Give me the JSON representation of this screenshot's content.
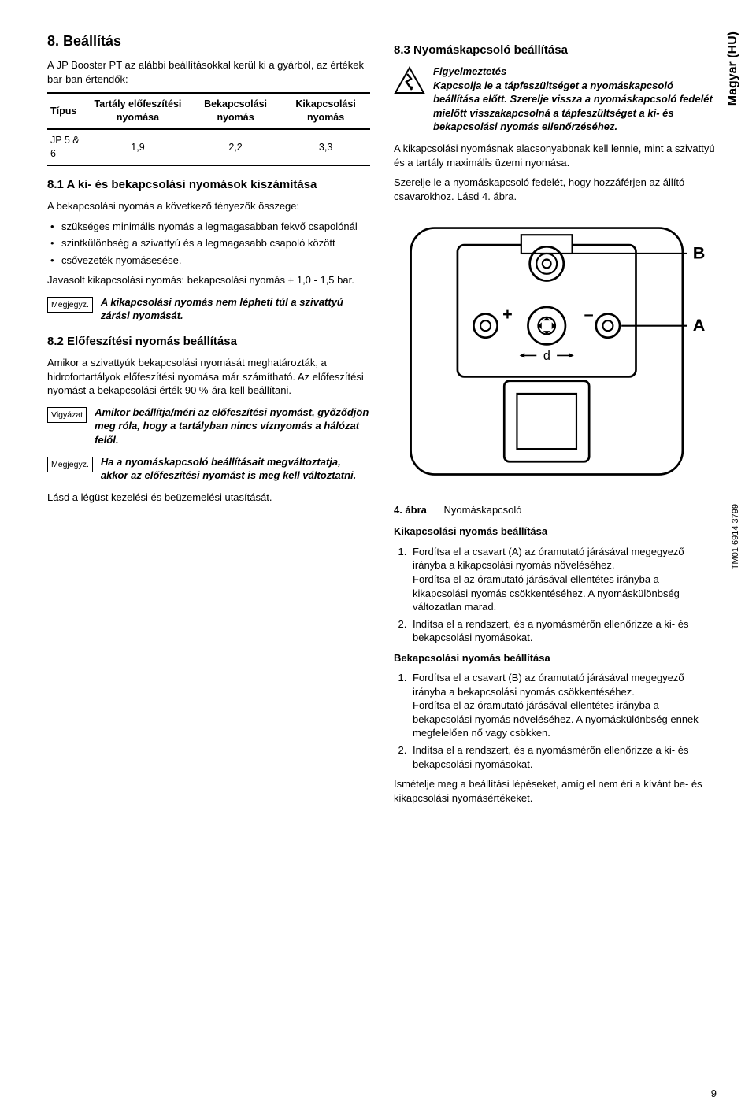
{
  "side_label": "Magyar (HU)",
  "fig_ref": "TM01 6914 3799",
  "page_no": "9",
  "left": {
    "h2": "8. Beállítás",
    "intro": "A JP Booster PT az alábbi beállításokkal kerül ki a gyárból, az értékek bar-ban értendők:",
    "table": {
      "headers": [
        "Típus",
        "Tartály előfeszítési nyomása",
        "Bekapcsolási nyomás",
        "Kikapcsolási nyomás"
      ],
      "row": [
        "JP 5 & 6",
        "1,9",
        "2,2",
        "3,3"
      ]
    },
    "h3a": "8.1 A ki- és bekapcsolási nyomások kiszámítása",
    "p1": "A bekapcsolási nyomás a következő tényezők összege:",
    "bullets": [
      "szükséges minimális nyomás a legmagasabban fekvő csapolónál",
      "szintkülönbség a szivattyú és a legmagasabb csapoló között",
      "csővezeték nyomásesése."
    ],
    "p2": "Javasolt kikapcsolási nyomás: bekapcsolási nyomás + 1,0 - 1,5 bar.",
    "note1_tag": "Megjegyz.",
    "note1_txt": "A kikapcsolási nyomás nem lépheti túl a szivattyú zárási nyomását.",
    "h3b": "8.2 Előfeszítési nyomás beállítása",
    "p3": "Amikor a szivattyúk bekapcsolási nyomását meghatározták, a hidrofortartályok előfeszítési nyomása már számítható. Az előfeszítési nyomást a bekapcsolási érték 90 %-ára kell beállítani.",
    "caution_tag": "Vigyázat",
    "caution_txt": "Amikor beállítja/méri az előfeszítési nyomást, győződjön meg róla, hogy a tartályban nincs víznyomás a hálózat felől.",
    "note2_tag": "Megjegyz.",
    "note2_txt": "Ha a nyomáskapcsoló beállításait megváltoztatja, akkor az előfeszítési nyomást is meg kell változtatni.",
    "p4": "Lásd a légüst kezelési és beüzemelési utasítását."
  },
  "right": {
    "h3": "8.3 Nyomáskapcsoló beállítása",
    "warn_title": "Figyelmeztetés",
    "warn_txt": "Kapcsolja le a tápfeszültséget a nyomáskapcsoló beállítása előtt. Szerelje vissza a nyomáskapcsoló fedelét mielőtt visszakapcsolná a tápfeszültséget a ki- és bekapcsolási nyomás ellenőrzéséhez.",
    "p1": "A kikapcsolási nyomásnak alacsonyabbnak kell lennie, mint a szivattyú és a tartály maximális üzemi nyomása.",
    "p2": "Szerelje le a nyomáskapcsoló fedelét, hogy hozzáférjen az állító csavarokhoz. Lásd 4. ábra.",
    "figcap_num": "4. ábra",
    "figcap_txt": "Nyomáskapcsoló",
    "sub1": "Kikapcsolási nyomás beállítása",
    "ol1": [
      "Fordítsa el a csavart (A) az óramutató járásával megegyező irányba a kikapcsolási nyomás növeléséhez.\nFordítsa el az óramutató járásával ellentétes irányba a kikapcsolási nyomás csökkentéséhez. A nyomáskülönbség változatlan marad.",
      "Indítsa el a rendszert, és a nyomásmérőn ellenőrizze a ki- és bekapcsolási nyomásokat."
    ],
    "sub2": "Bekapcsolási nyomás beállítása",
    "ol2": [
      "Fordítsa el a csavart (B) az óramutató járásával megegyező irányba a bekapcsolási nyomás csökkentéséhez.\nFordítsa el az óramutató járásával ellentétes irányba a bekapcsolási nyomás növeléséhez. A nyomáskülönbség ennek megfelelően nő vagy csökken.",
      "Indítsa el a rendszert, és a nyomásmérőn ellenőrizze a ki- és bekapcsolási nyomásokat."
    ],
    "p3": "Ismételje meg a beállítási lépéseket, amíg el nem éri a kívánt be- és kikapcsolási nyomásértékeket."
  },
  "diagram": {
    "stroke": "#000000",
    "fill": "#ffffff",
    "labels": {
      "A": "A",
      "B": "B",
      "plus": "+",
      "minus": "–",
      "d": "d"
    }
  }
}
